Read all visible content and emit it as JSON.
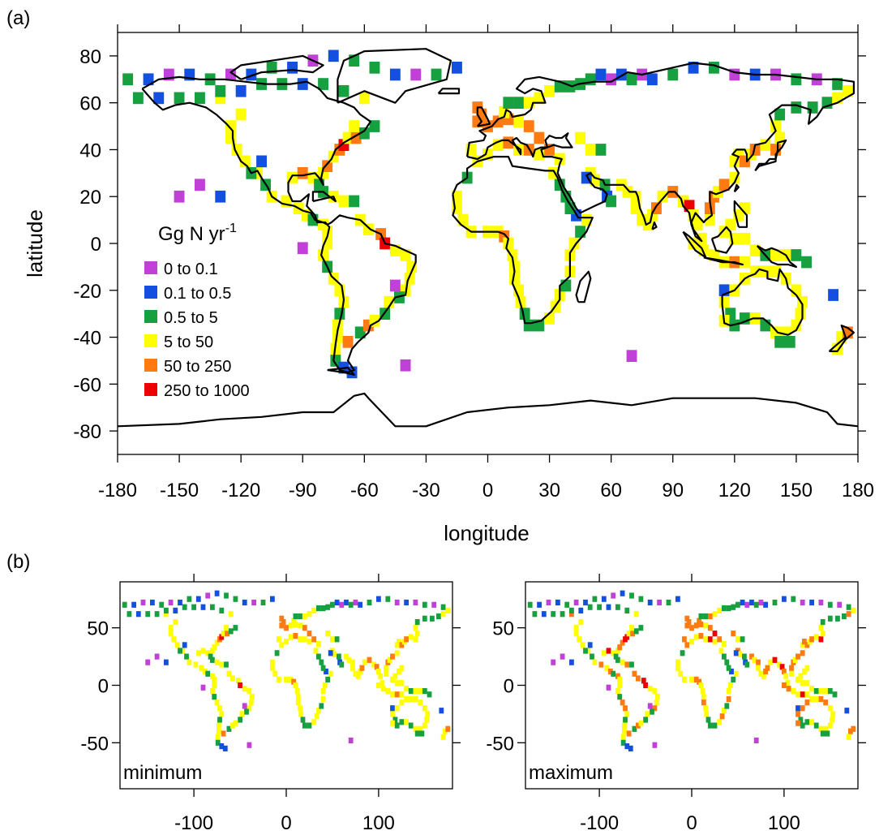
{
  "panel_a": {
    "tag": "(a)",
    "xlabel": "longitude",
    "ylabel": "latitude",
    "legend_title": "Gg N yr",
    "legend_title_sup": "-1"
  },
  "panel_b": {
    "tag": "(b)",
    "left_label": "minimum",
    "right_label": "maximum"
  },
  "legend": [
    {
      "label": "0  to  0.1",
      "color": "#c040d8"
    },
    {
      "label": "0.1  to  0.5",
      "color": "#1450e0"
    },
    {
      "label": "0.5  to  5",
      "color": "#17a040"
    },
    {
      "label": "5  to  50",
      "color": "#ffff00"
    },
    {
      "label": "50  to  250",
      "color": "#ff7a10"
    },
    {
      "label": "250  to  1000",
      "color": "#ee0000"
    }
  ],
  "chart_data": [
    {
      "type": "heatmap",
      "panel": "a",
      "xlim": [
        -180,
        180
      ],
      "ylim": [
        -90,
        90
      ],
      "xticks": [
        -180,
        -150,
        -120,
        -90,
        -60,
        -30,
        0,
        30,
        60,
        90,
        120,
        150,
        180
      ],
      "yticks": [
        -80,
        -60,
        -40,
        -20,
        0,
        20,
        40,
        60,
        80
      ],
      "cells": [
        [
          -170,
          62,
          2
        ],
        [
          -160,
          62,
          1
        ],
        [
          -150,
          62,
          2
        ],
        [
          -140,
          62,
          2
        ],
        [
          -130,
          62,
          3
        ],
        [
          -130,
          65,
          2
        ],
        [
          -120,
          65,
          1
        ],
        [
          -110,
          68,
          2
        ],
        [
          -100,
          68,
          2
        ],
        [
          -90,
          68,
          1
        ],
        [
          -80,
          68,
          2
        ],
        [
          -70,
          65,
          2
        ],
        [
          -60,
          62,
          3
        ],
        [
          -175,
          70,
          2
        ],
        [
          -165,
          70,
          1
        ],
        [
          -155,
          72,
          0
        ],
        [
          -145,
          72,
          1
        ],
        [
          -135,
          70,
          2
        ],
        [
          -125,
          72,
          0
        ],
        [
          -115,
          72,
          1
        ],
        [
          -105,
          75,
          2
        ],
        [
          -95,
          75,
          1
        ],
        [
          -85,
          78,
          0
        ],
        [
          -75,
          80,
          1
        ],
        [
          -65,
          78,
          2
        ],
        [
          -55,
          75,
          2
        ],
        [
          -45,
          72,
          1
        ],
        [
          -35,
          72,
          0
        ],
        [
          -25,
          72,
          2
        ],
        [
          -15,
          75,
          1
        ],
        [
          -120,
          55,
          3
        ],
        [
          -125,
          50,
          3
        ],
        [
          -125,
          45,
          3
        ],
        [
          -122,
          40,
          3
        ],
        [
          -118,
          35,
          3
        ],
        [
          -112,
          30,
          3
        ],
        [
          -108,
          25,
          2
        ],
        [
          -105,
          20,
          3
        ],
        [
          -98,
          18,
          3
        ],
        [
          -92,
          15,
          3
        ],
        [
          -88,
          12,
          3
        ],
        [
          -85,
          10,
          2
        ],
        [
          -80,
          8,
          3
        ],
        [
          -78,
          5,
          3
        ],
        [
          -78,
          0,
          3
        ],
        [
          -80,
          -5,
          3
        ],
        [
          -78,
          -10,
          2
        ],
        [
          -75,
          -15,
          3
        ],
        [
          -72,
          -20,
          3
        ],
        [
          -70,
          -25,
          3
        ],
        [
          -72,
          -30,
          2
        ],
        [
          -73,
          -35,
          3
        ],
        [
          -73,
          -40,
          3
        ],
        [
          -74,
          -45,
          3
        ],
        [
          -74,
          -50,
          2
        ],
        [
          -70,
          -53,
          1
        ],
        [
          -66,
          -55,
          1
        ],
        [
          -68,
          -42,
          4
        ],
        [
          -62,
          -38,
          2
        ],
        [
          -58,
          -35,
          4
        ],
        [
          -115,
          30,
          2
        ],
        [
          -110,
          35,
          1
        ],
        [
          -95,
          28,
          3
        ],
        [
          -90,
          30,
          4
        ],
        [
          -85,
          28,
          3
        ],
        [
          -82,
          25,
          2
        ],
        [
          -80,
          30,
          3
        ],
        [
          -78,
          33,
          4
        ],
        [
          -75,
          37,
          3
        ],
        [
          -72,
          40,
          4
        ],
        [
          -70,
          42,
          5
        ],
        [
          -68,
          45,
          3
        ],
        [
          -64,
          45,
          4
        ],
        [
          -60,
          47,
          2
        ],
        [
          -55,
          50,
          2
        ],
        [
          -65,
          50,
          3
        ],
        [
          -80,
          22,
          2
        ],
        [
          -75,
          20,
          3
        ],
        [
          -70,
          18,
          3
        ],
        [
          -65,
          18,
          2
        ],
        [
          -62,
          10,
          3
        ],
        [
          -58,
          6,
          3
        ],
        [
          -52,
          4,
          4
        ],
        [
          -50,
          0,
          5
        ],
        [
          -45,
          -3,
          3
        ],
        [
          -40,
          -5,
          3
        ],
        [
          -37,
          -10,
          3
        ],
        [
          -38,
          -15,
          3
        ],
        [
          -40,
          -20,
          3
        ],
        [
          -43,
          -23,
          2
        ],
        [
          -48,
          -25,
          3
        ],
        [
          -50,
          -30,
          2
        ],
        [
          -55,
          -33,
          3
        ],
        [
          -90,
          -2,
          0
        ],
        [
          -40,
          -52,
          0
        ],
        [
          -45,
          -18,
          0
        ],
        [
          -10,
          28,
          2
        ],
        [
          -15,
          20,
          3
        ],
        [
          -15,
          15,
          3
        ],
        [
          -12,
          10,
          3
        ],
        [
          -8,
          5,
          3
        ],
        [
          0,
          5,
          3
        ],
        [
          5,
          5,
          3
        ],
        [
          8,
          3,
          4
        ],
        [
          10,
          0,
          3
        ],
        [
          12,
          -5,
          3
        ],
        [
          13,
          -10,
          3
        ],
        [
          13,
          -15,
          3
        ],
        [
          15,
          -20,
          3
        ],
        [
          16,
          -25,
          3
        ],
        [
          18,
          -30,
          2
        ],
        [
          20,
          -35,
          2
        ],
        [
          25,
          -35,
          2
        ],
        [
          30,
          -32,
          3
        ],
        [
          33,
          -27,
          3
        ],
        [
          35,
          -22,
          3
        ],
        [
          38,
          -18,
          2
        ],
        [
          40,
          -12,
          3
        ],
        [
          40,
          -5,
          3
        ],
        [
          42,
          0,
          3
        ],
        [
          45,
          5,
          2
        ],
        [
          48,
          10,
          3
        ],
        [
          43,
          12,
          1
        ],
        [
          40,
          15,
          2
        ],
        [
          38,
          20,
          2
        ],
        [
          35,
          25,
          2
        ],
        [
          32,
          30,
          3
        ],
        [
          -8,
          40,
          3
        ],
        [
          -5,
          35,
          3
        ],
        [
          0,
          38,
          3
        ],
        [
          5,
          42,
          3
        ],
        [
          10,
          43,
          4
        ],
        [
          15,
          40,
          3
        ],
        [
          20,
          40,
          4
        ],
        [
          25,
          38,
          3
        ],
        [
          30,
          40,
          4
        ],
        [
          35,
          36,
          3
        ],
        [
          25,
          45,
          4
        ],
        [
          20,
          50,
          4
        ],
        [
          15,
          52,
          3
        ],
        [
          10,
          53,
          4
        ],
        [
          5,
          52,
          4
        ],
        [
          0,
          50,
          4
        ],
        [
          -5,
          52,
          4
        ],
        [
          -3,
          55,
          4
        ],
        [
          -5,
          58,
          4
        ],
        [
          8,
          56,
          3
        ],
        [
          10,
          60,
          2
        ],
        [
          15,
          60,
          2
        ],
        [
          20,
          60,
          3
        ],
        [
          25,
          62,
          3
        ],
        [
          30,
          65,
          3
        ],
        [
          35,
          67,
          2
        ],
        [
          40,
          67,
          2
        ],
        [
          45,
          68,
          2
        ],
        [
          50,
          70,
          2
        ],
        [
          55,
          72,
          1
        ],
        [
          60,
          70,
          0
        ],
        [
          65,
          72,
          1
        ],
        [
          70,
          70,
          2
        ],
        [
          75,
          72,
          0
        ],
        [
          80,
          70,
          1
        ],
        [
          90,
          72,
          2
        ],
        [
          100,
          75,
          1
        ],
        [
          110,
          75,
          2
        ],
        [
          120,
          72,
          0
        ],
        [
          130,
          72,
          1
        ],
        [
          140,
          72,
          0
        ],
        [
          150,
          70,
          2
        ],
        [
          160,
          70,
          0
        ],
        [
          170,
          68,
          2
        ],
        [
          175,
          65,
          3
        ],
        [
          178,
          60,
          3
        ],
        [
          45,
          45,
          3
        ],
        [
          50,
          40,
          3
        ],
        [
          55,
          40,
          2
        ],
        [
          50,
          30,
          3
        ],
        [
          52,
          27,
          3
        ],
        [
          57,
          25,
          2
        ],
        [
          48,
          28,
          1
        ],
        [
          58,
          20,
          1
        ],
        [
          60,
          18,
          2
        ],
        [
          65,
          25,
          3
        ],
        [
          68,
          22,
          3
        ],
        [
          72,
          20,
          3
        ],
        [
          72,
          15,
          3
        ],
        [
          75,
          10,
          3
        ],
        [
          78,
          8,
          3
        ],
        [
          80,
          12,
          3
        ],
        [
          82,
          15,
          4
        ],
        [
          85,
          20,
          3
        ],
        [
          90,
          22,
          4
        ],
        [
          95,
          18,
          3
        ],
        [
          98,
          16,
          5
        ],
        [
          100,
          12,
          3
        ],
        [
          102,
          8,
          3
        ],
        [
          104,
          2,
          3
        ],
        [
          108,
          10,
          3
        ],
        [
          108,
          15,
          4
        ],
        [
          110,
          20,
          4
        ],
        [
          112,
          22,
          3
        ],
        [
          115,
          25,
          4
        ],
        [
          120,
          28,
          3
        ],
        [
          120,
          35,
          3
        ],
        [
          122,
          38,
          3
        ],
        [
          125,
          35,
          4
        ],
        [
          128,
          38,
          3
        ],
        [
          130,
          40,
          4
        ],
        [
          135,
          42,
          3
        ],
        [
          140,
          40,
          4
        ],
        [
          142,
          45,
          3
        ],
        [
          140,
          50,
          3
        ],
        [
          142,
          55,
          2
        ],
        [
          150,
          58,
          2
        ],
        [
          158,
          58,
          2
        ],
        [
          165,
          60,
          2
        ],
        [
          170,
          62,
          3
        ],
        [
          100,
          0,
          3
        ],
        [
          105,
          -3,
          3
        ],
        [
          110,
          -5,
          3
        ],
        [
          115,
          -8,
          3
        ],
        [
          120,
          -8,
          4
        ],
        [
          125,
          -8,
          3
        ],
        [
          130,
          -3,
          3
        ],
        [
          135,
          -5,
          2
        ],
        [
          140,
          -5,
          3
        ],
        [
          145,
          -5,
          3
        ],
        [
          150,
          -5,
          2
        ],
        [
          155,
          -8,
          2
        ],
        [
          120,
          2,
          3
        ],
        [
          125,
          2,
          3
        ],
        [
          118,
          8,
          3
        ],
        [
          122,
          12,
          3
        ],
        [
          125,
          15,
          3
        ],
        [
          115,
          5,
          3
        ],
        [
          115,
          -20,
          1
        ],
        [
          115,
          -25,
          3
        ],
        [
          118,
          -30,
          2
        ],
        [
          115,
          -33,
          3
        ],
        [
          120,
          -35,
          2
        ],
        [
          125,
          -32,
          2
        ],
        [
          130,
          -32,
          3
        ],
        [
          135,
          -35,
          2
        ],
        [
          140,
          -38,
          3
        ],
        [
          145,
          -38,
          3
        ],
        [
          150,
          -35,
          3
        ],
        [
          152,
          -30,
          3
        ],
        [
          153,
          -25,
          3
        ],
        [
          150,
          -20,
          3
        ],
        [
          145,
          -15,
          3
        ],
        [
          140,
          -12,
          3
        ],
        [
          135,
          -12,
          3
        ],
        [
          130,
          -12,
          3
        ],
        [
          125,
          -15,
          3
        ],
        [
          120,
          -20,
          3
        ],
        [
          142,
          -42,
          2
        ],
        [
          147,
          -42,
          2
        ],
        [
          172,
          -40,
          3
        ],
        [
          175,
          -38,
          4
        ],
        [
          170,
          -45,
          3
        ],
        [
          168,
          -22,
          1
        ],
        [
          70,
          -48,
          0
        ],
        [
          -140,
          25,
          0
        ],
        [
          -130,
          20,
          1
        ],
        [
          -150,
          20,
          0
        ]
      ]
    },
    {
      "type": "heatmap",
      "panel": "b-minimum",
      "xlim": [
        -180,
        180
      ],
      "ylim": [
        -90,
        90
      ],
      "xticks": [
        -100,
        0,
        100
      ],
      "yticks": [
        -50,
        0,
        50
      ]
    },
    {
      "type": "heatmap",
      "panel": "b-maximum",
      "xlim": [
        -180,
        180
      ],
      "ylim": [
        -90,
        90
      ],
      "xticks": [
        -100,
        0,
        100
      ],
      "yticks": [
        -50,
        0,
        50
      ]
    }
  ]
}
